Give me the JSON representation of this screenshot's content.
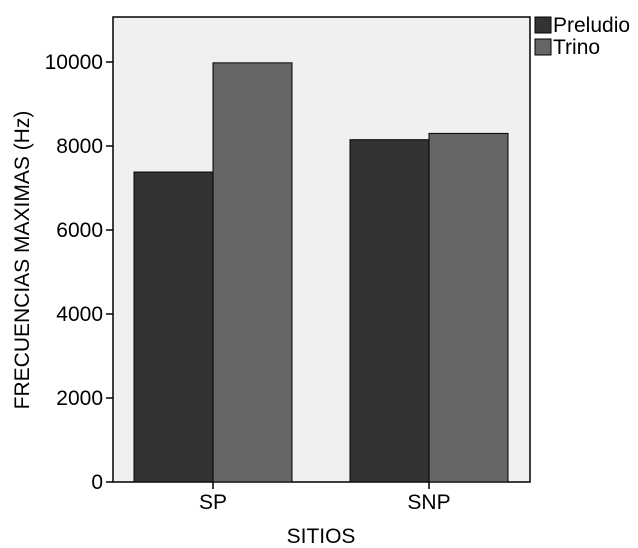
{
  "chart_data": {
    "type": "bar",
    "title": "",
    "xlabel": "SITIOS",
    "ylabel": "FRECUENCIAS MAXIMAS (Hz)",
    "categories": [
      "SP",
      "SNP"
    ],
    "series": [
      {
        "name": "Preludio",
        "values": [
          7380,
          8150
        ],
        "color": "#333333"
      },
      {
        "name": "Trino",
        "values": [
          9980,
          8300
        ],
        "color": "#666666"
      }
    ],
    "ylim": [
      0,
      11000
    ],
    "yticks": [
      0,
      2000,
      4000,
      6000,
      8000,
      10000
    ],
    "grid": false,
    "plot_background": "#f0f0f0",
    "legend_position": "top-right"
  }
}
